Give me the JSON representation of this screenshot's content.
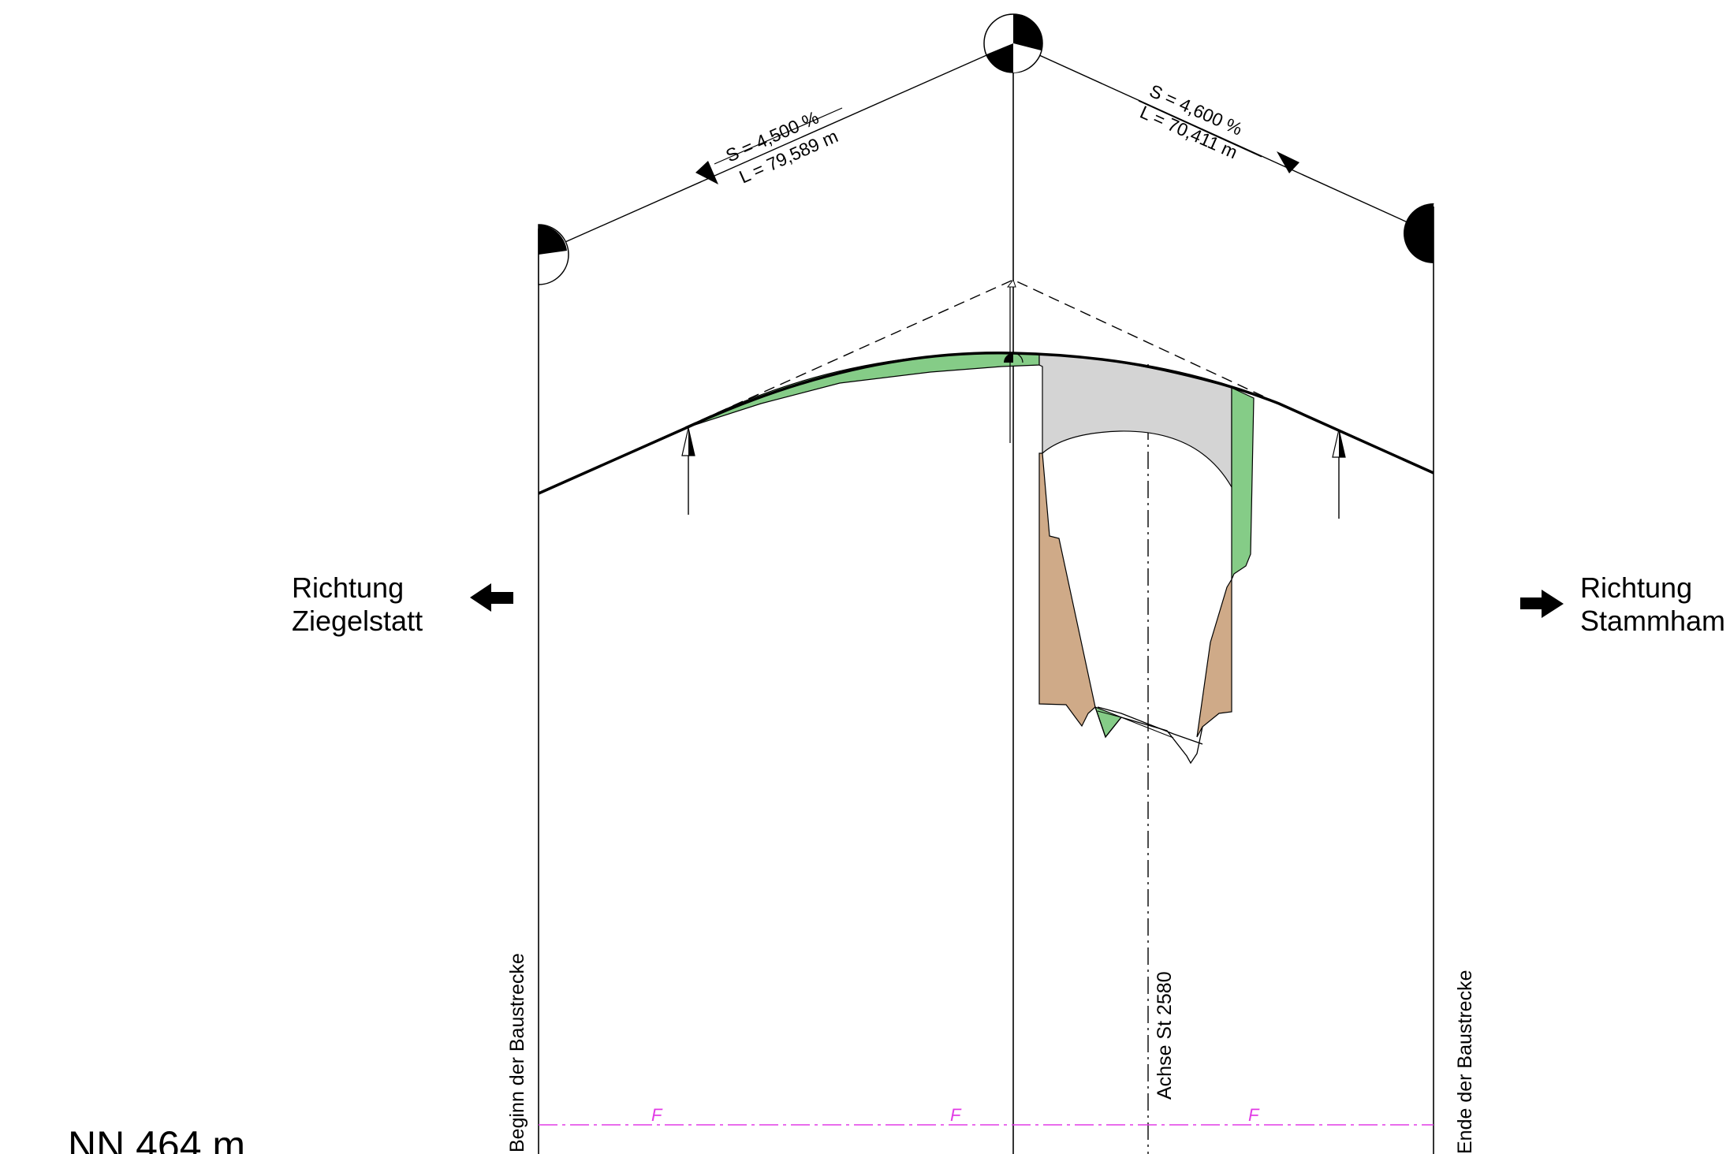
{
  "profile": {
    "grade_left": "S = 4,500 %",
    "length_left": "L = 79,589 m",
    "grade_right": "S = 4,600 %",
    "length_right": "L = 70,411 m"
  },
  "stations": {
    "start_label": "Beginn der Baustrecke",
    "end_label": "Ende der Baustrecke",
    "axis_label": "Achse St 2580"
  },
  "directions": {
    "left_line1": "Richtung",
    "left_line2": "Ziegelstatt",
    "right_line1": "Richtung",
    "right_line2": "Stammham"
  },
  "datum": {
    "label": "NN 464 m"
  },
  "boundary_markers": [
    "F",
    "F",
    "F"
  ],
  "colors": {
    "fill_green": "#85cc87",
    "fill_grey": "#d4d4d4",
    "fill_brown": "#cfaa88",
    "boundary_magenta": "#e23be6"
  },
  "icons": {
    "left_arrow": "arrow-left-icon",
    "right_arrow": "arrow-right-icon",
    "survey_marker": "survey-point-icon"
  }
}
